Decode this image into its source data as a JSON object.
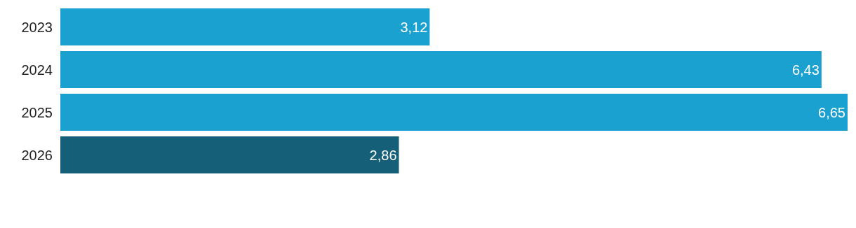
{
  "chart_data": {
    "type": "bar",
    "orientation": "horizontal",
    "categories": [
      "2023",
      "2024",
      "2025",
      "2026"
    ],
    "values": [
      3.12,
      6.43,
      6.65,
      2.86
    ],
    "colors": [
      "#1ba1cf",
      "#1ba1cf",
      "#1ba1cf",
      "#156078"
    ],
    "value_labels": [
      "3,12",
      "6,43",
      "6,65",
      "2,86"
    ]
  }
}
